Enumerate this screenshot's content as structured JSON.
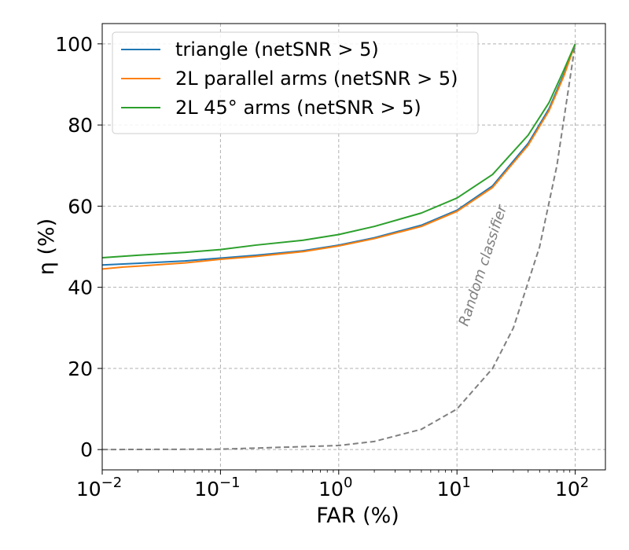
{
  "chart_data": {
    "type": "line",
    "xscale": "log",
    "xlim": [
      0.01,
      180
    ],
    "ylim": [
      -5,
      105
    ],
    "grid": true,
    "xlabel": "FAR (%)",
    "ylabel": "η (%)",
    "xticks": [
      {
        "value": 0.01,
        "base": "10",
        "exp": "−2"
      },
      {
        "value": 0.1,
        "base": "10",
        "exp": "−1"
      },
      {
        "value": 1,
        "base": "10",
        "exp": "0"
      },
      {
        "value": 10,
        "base": "10",
        "exp": "1"
      },
      {
        "value": 100,
        "base": "10",
        "exp": "2"
      }
    ],
    "yticks": [
      "0",
      "20",
      "40",
      "60",
      "80",
      "100"
    ],
    "legend_position": "top-left",
    "series": [
      {
        "name": "triangle (netSNR > 5)",
        "color": "#1f77b4",
        "x": [
          0.01,
          0.02,
          0.05,
          0.1,
          0.2,
          0.5,
          1,
          2,
          5,
          10,
          20,
          40,
          60,
          80,
          100
        ],
        "y": [
          45.5,
          45.9,
          46.5,
          47.2,
          47.9,
          49.0,
          50.4,
          52.2,
          55.3,
          59.0,
          65.0,
          75.5,
          84.0,
          92.5,
          100
        ]
      },
      {
        "name": "2L parallel arms (netSNR > 5)",
        "color": "#ff7f0e",
        "x": [
          0.01,
          0.015,
          0.02,
          0.05,
          0.1,
          0.2,
          0.5,
          1,
          2,
          5,
          10,
          20,
          40,
          60,
          80,
          100
        ],
        "y": [
          44.5,
          45.0,
          45.2,
          46.0,
          46.9,
          47.6,
          48.8,
          50.2,
          52.0,
          55.0,
          58.7,
          64.6,
          75.0,
          83.5,
          92.0,
          100
        ]
      },
      {
        "name": "2L 45° arms (netSNR > 5)",
        "color": "#2ca02c",
        "x": [
          0.01,
          0.02,
          0.05,
          0.1,
          0.2,
          0.5,
          1,
          2,
          5,
          10,
          20,
          40,
          60,
          80,
          100
        ],
        "y": [
          47.3,
          47.9,
          48.6,
          49.3,
          50.4,
          51.6,
          53.0,
          55.0,
          58.3,
          62.0,
          67.8,
          77.5,
          85.5,
          93.5,
          100
        ]
      },
      {
        "name": "Random classifier",
        "color": "#808080",
        "dashed": true,
        "legend": false,
        "x": [
          0.01,
          0.1,
          1,
          2,
          5,
          10,
          20,
          30,
          50,
          70,
          100
        ],
        "y": [
          0.01,
          0.1,
          1,
          2,
          5,
          10,
          20,
          30,
          50,
          70,
          100
        ]
      }
    ],
    "annotations": [
      {
        "text": "Random classifier",
        "x": 18,
        "y": 45,
        "rotation": -72,
        "color": "#808080"
      }
    ]
  }
}
